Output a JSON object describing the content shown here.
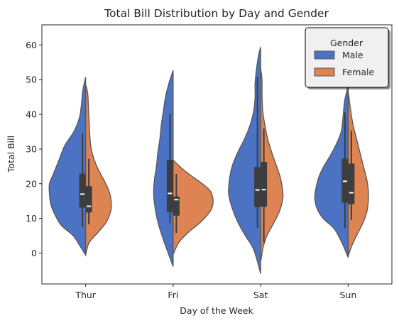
{
  "chart_data": {
    "type": "violin",
    "split": true,
    "title": "Total Bill Distribution by Day and Gender",
    "xlabel": "Day of the Week",
    "ylabel": "Total Bill",
    "categories": [
      "Thur",
      "Fri",
      "Sat",
      "Sun"
    ],
    "ylim": [
      -8.9,
      65.8
    ],
    "yticks": [
      0,
      10,
      20,
      30,
      40,
      50,
      60
    ],
    "grid": false,
    "legend": {
      "title": "Gender",
      "placement": "top-right"
    },
    "colors": {
      "Male": "#4c72c4",
      "Female": "#dd8452",
      "box": "#3d3d3d",
      "outline": "#555555"
    },
    "series": [
      {
        "name": "Male",
        "violins": [
          {
            "range": [
              -0.6,
              50.7
            ],
            "profile": [
              [
                -0.6,
                0
              ],
              [
                2,
                8
              ],
              [
                5,
                18
              ],
              [
                8,
                35
              ],
              [
                11,
                44
              ],
              [
                14,
                50
              ],
              [
                17,
                52
              ],
              [
                20,
                52
              ],
              [
                23,
                46
              ],
              [
                27,
                38
              ],
              [
                31,
                30
              ],
              [
                35,
                17
              ],
              [
                39,
                9
              ],
              [
                43,
                6
              ],
              [
                47,
                4
              ],
              [
                50.7,
                0
              ]
            ]
          },
          {
            "range": [
              -3.9,
              52.7
            ],
            "profile": [
              [
                -3.9,
                0
              ],
              [
                1,
                9
              ],
              [
                5,
                16
              ],
              [
                9,
                22
              ],
              [
                13,
                26
              ],
              [
                17,
                28
              ],
              [
                21,
                27
              ],
              [
                25,
                24
              ],
              [
                29,
                22
              ],
              [
                33,
                19
              ],
              [
                37,
                17
              ],
              [
                41,
                14
              ],
              [
                45,
                11
              ],
              [
                49,
                6
              ],
              [
                52.7,
                0
              ]
            ]
          },
          {
            "range": [
              -5.9,
              59.4
            ],
            "profile": [
              [
                -5.9,
                0
              ],
              [
                1,
                10
              ],
              [
                5,
                22
              ],
              [
                9,
                33
              ],
              [
                13,
                41
              ],
              [
                17,
                46
              ],
              [
                21,
                45
              ],
              [
                25,
                41
              ],
              [
                29,
                33
              ],
              [
                33,
                23
              ],
              [
                37,
                15
              ],
              [
                41,
                10
              ],
              [
                45,
                8
              ],
              [
                49,
                8
              ],
              [
                53,
                6
              ],
              [
                57,
                3
              ],
              [
                59.4,
                0
              ]
            ]
          },
          {
            "range": [
              -1.3,
              48.2
            ],
            "profile": [
              [
                -1.3,
                0
              ],
              [
                3,
                9
              ],
              [
                7,
                20
              ],
              [
                10,
                36
              ],
              [
                13,
                45
              ],
              [
                16,
                48
              ],
              [
                19,
                46
              ],
              [
                22,
                42
              ],
              [
                25,
                35
              ],
              [
                28,
                26
              ],
              [
                31,
                18
              ],
              [
                35,
                10
              ],
              [
                40,
                7
              ],
              [
                44,
                5
              ],
              [
                48.2,
                0
              ]
            ]
          }
        ],
        "box": [
          {
            "whisker": [
              7.5,
              34.5
            ],
            "q1": 13.1,
            "q3": 22.9,
            "median": 17.0
          },
          {
            "whisker": [
              8.6,
              40.2
            ],
            "q1": 11.8,
            "q3": 26.9,
            "median": 17.2
          },
          {
            "whisker": [
              7.3,
              50.8
            ],
            "q1": 13.3,
            "q3": 24.8,
            "median": 18.2
          },
          {
            "whisker": [
              7.2,
              40.6
            ],
            "q1": 14.5,
            "q3": 27.2,
            "median": 20.7
          }
        ]
      },
      {
        "name": "Female",
        "violins": [
          {
            "range": [
              -0.6,
              48.7
            ],
            "profile": [
              [
                -0.6,
                0
              ],
              [
                3,
                5
              ],
              [
                6,
                18
              ],
              [
                9,
                30
              ],
              [
                12,
                36
              ],
              [
                14,
                37
              ],
              [
                17,
                35
              ],
              [
                20,
                29
              ],
              [
                23,
                21
              ],
              [
                26,
                14
              ],
              [
                30,
                8
              ],
              [
                34,
                6
              ],
              [
                38,
                5
              ],
              [
                42,
                4
              ],
              [
                46,
                3
              ],
              [
                48.7,
                0
              ]
            ]
          },
          {
            "range": [
              -0.4,
              26.8
            ],
            "profile": [
              [
                -0.4,
                0
              ],
              [
                3,
                8
              ],
              [
                6,
                22
              ],
              [
                9,
                40
              ],
              [
                12,
                53
              ],
              [
                14,
                57
              ],
              [
                16,
                57
              ],
              [
                18,
                53
              ],
              [
                20,
                42
              ],
              [
                22,
                28
              ],
              [
                24,
                15
              ],
              [
                26.8,
                0
              ]
            ]
          },
          {
            "range": [
              -2.5,
              53.3
            ],
            "profile": [
              [
                -2.5,
                0
              ],
              [
                2,
                4
              ],
              [
                5,
                9
              ],
              [
                8,
                17
              ],
              [
                12,
                27
              ],
              [
                16,
                32
              ],
              [
                19,
                31
              ],
              [
                22,
                28
              ],
              [
                25,
                23
              ],
              [
                29,
                16
              ],
              [
                33,
                10
              ],
              [
                37,
                6
              ],
              [
                41,
                3
              ],
              [
                46,
                2
              ],
              [
                50,
                2
              ],
              [
                53.3,
                0
              ]
            ]
          },
          {
            "range": [
              -0.9,
              46.9
            ],
            "profile": [
              [
                -0.9,
                0
              ],
              [
                2,
                5
              ],
              [
                5,
                12
              ],
              [
                9,
                22
              ],
              [
                12,
                27
              ],
              [
                15,
                29
              ],
              [
                18,
                29
              ],
              [
                21,
                27
              ],
              [
                25,
                22
              ],
              [
                29,
                17
              ],
              [
                33,
                12
              ],
              [
                37,
                7
              ],
              [
                42,
                3
              ],
              [
                46.9,
                0
              ]
            ]
          }
        ],
        "box": [
          {
            "whisker": [
              8.3,
              27.2
            ],
            "q1": 11.7,
            "q3": 19.3,
            "median": 13.5
          },
          {
            "whisker": [
              5.8,
              22.8
            ],
            "q1": 10.8,
            "q3": 16.3,
            "median": 15.4
          },
          {
            "whisker": [
              3.1,
              35.9
            ],
            "q1": 13.4,
            "q3": 26.3,
            "median": 18.3
          },
          {
            "whisker": [
              9.6,
              35.3
            ],
            "q1": 14.1,
            "q3": 25.8,
            "median": 17.4
          }
        ]
      }
    ]
  }
}
